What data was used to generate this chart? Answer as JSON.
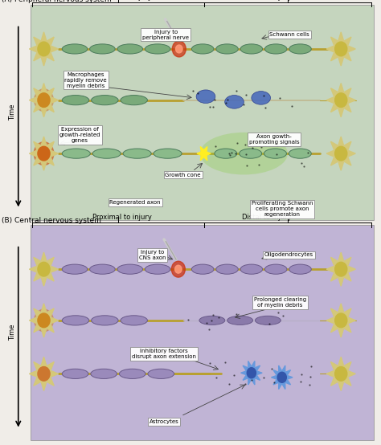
{
  "fig_width": 4.74,
  "fig_height": 5.54,
  "dpi": 100,
  "bg_color": "#f0ede8",
  "panel_A": {
    "label": "(A) Peripheral nervous system",
    "bg_color": "#c5d5be",
    "header_proximal": "Proximal to injury",
    "header_distal": "Distal to injury",
    "time_label": "Time",
    "neuron_fill": "#d4c87a",
    "neuron_center": "#c8b840",
    "axon_color": "#b8a030",
    "myelin_edge": "#4a7a5a",
    "myelin_fill": "#7aaa7a"
  },
  "panel_B": {
    "label": "(B) Central nervous system",
    "bg_color": "#c0b4d5",
    "header_proximal": "Proximal to injury",
    "header_distal": "Distal to injury",
    "time_label": "Time",
    "neuron_fill": "#d4c87a",
    "neuron_center": "#c8b840",
    "axon_color": "#b8a030",
    "myelin_edge": "#6a5a8a",
    "myelin_fill": "#9a8abb"
  }
}
